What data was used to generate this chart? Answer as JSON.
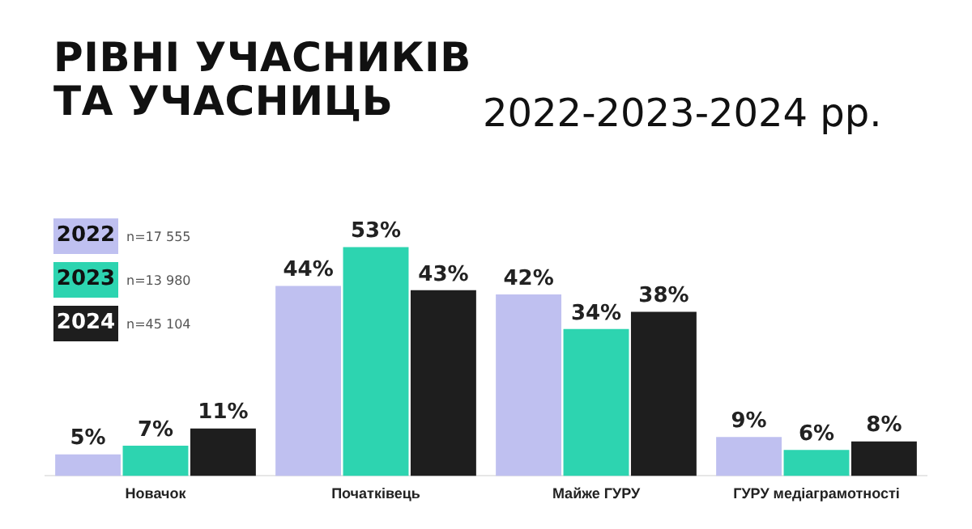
{
  "chart_data": {
    "type": "bar",
    "title": "РІВНІ УЧАСНИКІВ ТА УЧАСНИЦЬ",
    "subtitle": "2022-2023-2024 рр.",
    "categories": [
      "Новачок",
      "Початківець",
      "Майже ГУРУ",
      "ГУРУ медіаграмотності"
    ],
    "series": [
      {
        "name": "2022",
        "color": "#bfc0f0",
        "values": [
          5,
          44,
          42,
          9
        ],
        "value_labels": [
          "5%",
          "44%",
          "42%",
          "9%"
        ]
      },
      {
        "name": "2023",
        "color": "#2dd4b0",
        "values": [
          7,
          53,
          34,
          6
        ],
        "value_labels": [
          "7%",
          "53%",
          "34%",
          "6%"
        ]
      },
      {
        "name": "2024",
        "color": "#1e1e1e",
        "values": [
          11,
          43,
          38,
          8
        ],
        "value_labels": [
          "11%",
          "43%",
          "38%",
          "8%"
        ]
      }
    ],
    "annotations": [
      "n=17 555",
      "n=13 980",
      "n=45 104"
    ],
    "legend": "top left",
    "grid": false
  }
}
